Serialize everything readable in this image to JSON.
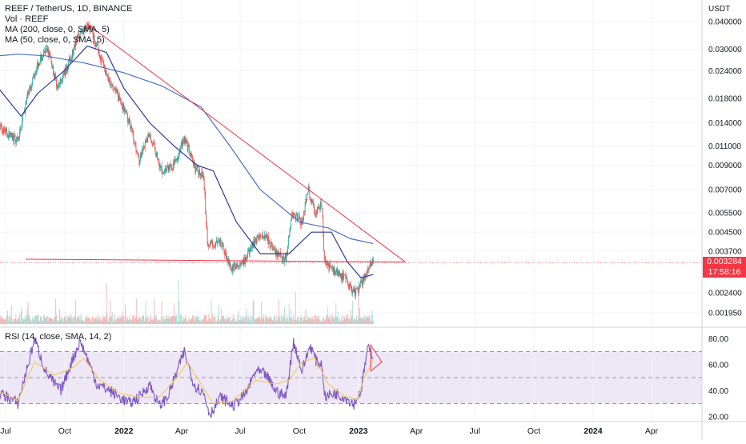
{
  "header": {
    "symbol_line": "REEF / TetherUS, 1D, BINANCE",
    "vol_line": "Vol · REEF",
    "ma200_line": "MA (200, close, 0, SMA, 5)",
    "ma50_line": "MA (50, close, 0, SMA, 5)",
    "rsi_line": "RSI (14, close, SMA, 14, 2)",
    "currency": "USDT"
  },
  "price_tag": {
    "value": "0.003284",
    "countdown": "17:58:16"
  },
  "colors": {
    "up": "#26a69a",
    "down": "#ef5350",
    "ma_fast": "#2e3a9f",
    "ma_slow": "#4a6fc7",
    "trendline": "#f23645",
    "rsi": "#7e57c2",
    "rsi_ma": "#f7c548",
    "rsi_band": "#ede7f6"
  },
  "chart_data": [
    {
      "type": "candlestick",
      "x_ticks": [
        "Jul",
        "Oct",
        "2022",
        "Apr",
        "Jul",
        "Oct",
        "2023",
        "Apr",
        "Jul",
        "Oct",
        "2024",
        "Apr"
      ],
      "y_ticks": [
        "0.040000",
        "0.030000",
        "0.024000",
        "0.018000",
        "0.014000",
        "0.011000",
        "0.009000",
        "0.007000",
        "0.005500",
        "0.004500",
        "0.003700",
        "0.002400",
        "0.001950"
      ],
      "y_scale": "log",
      "ylim": [
        0.00175,
        0.046
      ],
      "last_price": 0.003284,
      "path_points": [
        [
          "2021-06-20",
          0.0135
        ],
        [
          "2021-07-20",
          0.0115
        ],
        [
          "2021-08-05",
          0.019
        ],
        [
          "2021-08-20",
          0.026
        ],
        [
          "2021-09-05",
          0.03
        ],
        [
          "2021-09-20",
          0.02
        ],
        [
          "2021-10-05",
          0.025
        ],
        [
          "2021-10-25",
          0.036
        ],
        [
          "2021-11-10",
          0.038
        ],
        [
          "2021-11-25",
          0.028
        ],
        [
          "2021-12-10",
          0.021
        ],
        [
          "2021-12-25",
          0.018
        ],
        [
          "2022-01-10",
          0.014
        ],
        [
          "2022-01-25",
          0.0095
        ],
        [
          "2022-02-10",
          0.0125
        ],
        [
          "2022-03-01",
          0.0085
        ],
        [
          "2022-03-20",
          0.009
        ],
        [
          "2022-04-05",
          0.012
        ],
        [
          "2022-04-20",
          0.009
        ],
        [
          "2022-05-05",
          0.008
        ],
        [
          "2022-05-11",
          0.004
        ],
        [
          "2022-06-01",
          0.004
        ],
        [
          "2022-06-18",
          0.0031
        ],
        [
          "2022-07-05",
          0.0032
        ],
        [
          "2022-07-25",
          0.0042
        ],
        [
          "2022-08-10",
          0.0044
        ],
        [
          "2022-08-25",
          0.0036
        ],
        [
          "2022-09-10",
          0.0034
        ],
        [
          "2022-09-20",
          0.0055
        ],
        [
          "2022-10-05",
          0.005
        ],
        [
          "2022-10-15",
          0.007
        ],
        [
          "2022-10-25",
          0.0055
        ],
        [
          "2022-11-05",
          0.006
        ],
        [
          "2022-11-09",
          0.0033
        ],
        [
          "2022-11-25",
          0.003
        ],
        [
          "2022-12-10",
          0.0028
        ],
        [
          "2022-12-25",
          0.0024
        ],
        [
          "2023-01-05",
          0.0026
        ],
        [
          "2023-01-15",
          0.0031
        ],
        [
          "2023-01-24",
          0.003284
        ]
      ],
      "series": [
        {
          "name": "MA (200, close, 0, SMA, 5)",
          "points": [
            [
              "2021-06-20",
              0.028
            ],
            [
              "2021-07-20",
              0.0285
            ],
            [
              "2021-09-01",
              0.028
            ],
            [
              "2021-11-01",
              0.026
            ],
            [
              "2022-01-01",
              0.0235
            ],
            [
              "2022-03-01",
              0.0205
            ],
            [
              "2022-05-01",
              0.0165
            ],
            [
              "2022-06-15",
              0.011
            ],
            [
              "2022-08-01",
              0.007
            ],
            [
              "2022-10-01",
              0.005
            ],
            [
              "2022-11-15",
              0.0047
            ],
            [
              "2022-12-20",
              0.0042
            ],
            [
              "2023-01-24",
              0.004
            ]
          ]
        },
        {
          "name": "MA (50, close, 0, SMA, 5)",
          "points": [
            [
              "2021-06-20",
              0.02
            ],
            [
              "2021-07-25",
              0.015
            ],
            [
              "2021-08-20",
              0.019
            ],
            [
              "2021-09-30",
              0.024
            ],
            [
              "2021-11-05",
              0.031
            ],
            [
              "2021-12-05",
              0.029
            ],
            [
              "2022-01-01",
              0.02
            ],
            [
              "2022-02-10",
              0.014
            ],
            [
              "2022-03-20",
              0.011
            ],
            [
              "2022-04-25",
              0.009
            ],
            [
              "2022-05-20",
              0.0085
            ],
            [
              "2022-06-25",
              0.005
            ],
            [
              "2022-08-01",
              0.0036
            ],
            [
              "2022-09-15",
              0.0036
            ],
            [
              "2022-10-20",
              0.0045
            ],
            [
              "2022-11-20",
              0.0045
            ],
            [
              "2022-12-15",
              0.0033
            ],
            [
              "2023-01-05",
              0.0028
            ],
            [
              "2023-01-24",
              0.0029
            ]
          ]
        }
      ],
      "trendlines": [
        {
          "from": [
            "2021-11-05",
            0.039
          ],
          "to": [
            "2023-03-15",
            0.0033
          ]
        },
        {
          "from": [
            "2021-08-01",
            0.0034
          ],
          "to": [
            "2023-03-15",
            0.0033
          ]
        }
      ]
    },
    {
      "type": "line",
      "y_ticks": [
        "80.00",
        "60.00",
        "40.00",
        "20.00"
      ],
      "ylim": [
        18,
        82
      ],
      "bands": [
        30,
        50,
        70
      ],
      "series": [
        {
          "name": "RSI (14, close, SMA, 14, 2)",
          "points": [
            [
              "2021-06-20",
              38
            ],
            [
              "2021-07-05",
              35
            ],
            [
              "2021-07-20",
              30
            ],
            [
              "2021-08-05",
              60
            ],
            [
              "2021-08-15",
              80
            ],
            [
              "2021-09-01",
              55
            ],
            [
              "2021-09-15",
              45
            ],
            [
              "2021-09-25",
              40
            ],
            [
              "2021-10-10",
              60
            ],
            [
              "2021-10-25",
              78
            ],
            [
              "2021-11-05",
              65
            ],
            [
              "2021-11-20",
              45
            ],
            [
              "2021-12-10",
              40
            ],
            [
              "2021-12-25",
              35
            ],
            [
              "2022-01-10",
              30
            ],
            [
              "2022-01-25",
              35
            ],
            [
              "2022-02-10",
              45
            ],
            [
              "2022-02-25",
              28
            ],
            [
              "2022-03-10",
              35
            ],
            [
              "2022-03-25",
              55
            ],
            [
              "2022-04-05",
              70
            ],
            [
              "2022-04-20",
              45
            ],
            [
              "2022-05-05",
              38
            ],
            [
              "2022-05-15",
              22
            ],
            [
              "2022-06-01",
              35
            ],
            [
              "2022-06-20",
              28
            ],
            [
              "2022-07-10",
              38
            ],
            [
              "2022-07-25",
              55
            ],
            [
              "2022-08-10",
              52
            ],
            [
              "2022-08-25",
              40
            ],
            [
              "2022-09-10",
              35
            ],
            [
              "2022-09-22",
              78
            ],
            [
              "2022-10-05",
              55
            ],
            [
              "2022-10-18",
              75
            ],
            [
              "2022-10-28",
              62
            ],
            [
              "2022-11-05",
              60
            ],
            [
              "2022-11-10",
              35
            ],
            [
              "2022-11-25",
              38
            ],
            [
              "2022-12-10",
              35
            ],
            [
              "2022-12-25",
              30
            ],
            [
              "2023-01-05",
              40
            ],
            [
              "2023-01-15",
              72
            ],
            [
              "2023-01-24",
              68
            ]
          ]
        },
        {
          "name": "MA",
          "points": [
            [
              "2021-06-20",
              40
            ],
            [
              "2021-07-20",
              32
            ],
            [
              "2021-08-15",
              62
            ],
            [
              "2021-09-15",
              52
            ],
            [
              "2021-10-15",
              58
            ],
            [
              "2021-10-30",
              65
            ],
            [
              "2021-11-25",
              48
            ],
            [
              "2021-12-25",
              38
            ],
            [
              "2022-01-25",
              35
            ],
            [
              "2022-02-25",
              35
            ],
            [
              "2022-03-25",
              50
            ],
            [
              "2022-04-10",
              62
            ],
            [
              "2022-05-01",
              45
            ],
            [
              "2022-05-20",
              30
            ],
            [
              "2022-06-20",
              32
            ],
            [
              "2022-07-25",
              48
            ],
            [
              "2022-08-25",
              45
            ],
            [
              "2022-09-15",
              48
            ],
            [
              "2022-10-05",
              62
            ],
            [
              "2022-10-25",
              65
            ],
            [
              "2022-11-15",
              45
            ],
            [
              "2022-12-10",
              36
            ],
            [
              "2022-12-30",
              33
            ],
            [
              "2023-01-10",
              50
            ],
            [
              "2023-01-24",
              64
            ]
          ]
        }
      ]
    }
  ]
}
